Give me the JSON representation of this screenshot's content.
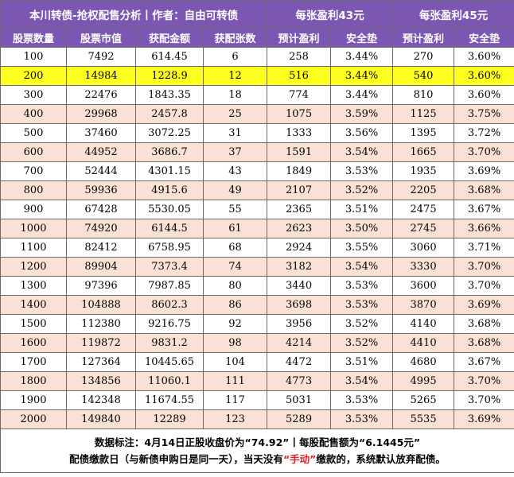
{
  "title": {
    "left": "本川转债-抢权配售分析丨作者：自由可转债",
    "mid": "每张盈利43元",
    "right": "每张盈利45元"
  },
  "headers": [
    "股票数量",
    "股票市值",
    "获配金额",
    "获配张数",
    "预计盈利",
    "安全垫",
    "预计盈利",
    "安全垫"
  ],
  "rows": [
    [
      "100",
      "7492",
      "614.45",
      "6",
      "258",
      "3.44%",
      "270",
      "3.60%"
    ],
    [
      "200",
      "14984",
      "1228.9",
      "12",
      "516",
      "3.44%",
      "540",
      "3.60%"
    ],
    [
      "300",
      "22476",
      "1843.35",
      "18",
      "774",
      "3.44%",
      "810",
      "3.60%"
    ],
    [
      "400",
      "29968",
      "2457.8",
      "25",
      "1075",
      "3.59%",
      "1125",
      "3.75%"
    ],
    [
      "500",
      "37460",
      "3072.25",
      "31",
      "1333",
      "3.56%",
      "1395",
      "3.72%"
    ],
    [
      "600",
      "44952",
      "3686.7",
      "37",
      "1591",
      "3.54%",
      "1665",
      "3.70%"
    ],
    [
      "700",
      "52444",
      "4301.15",
      "43",
      "1849",
      "3.53%",
      "1935",
      "3.69%"
    ],
    [
      "800",
      "59936",
      "4915.6",
      "49",
      "2107",
      "3.52%",
      "2205",
      "3.68%"
    ],
    [
      "900",
      "67428",
      "5530.05",
      "55",
      "2365",
      "3.51%",
      "2475",
      "3.67%"
    ],
    [
      "1000",
      "74920",
      "6144.5",
      "61",
      "2623",
      "3.50%",
      "2745",
      "3.66%"
    ],
    [
      "1100",
      "82412",
      "6758.95",
      "68",
      "2924",
      "3.55%",
      "3060",
      "3.71%"
    ],
    [
      "1200",
      "89904",
      "7373.4",
      "74",
      "3182",
      "3.54%",
      "3330",
      "3.70%"
    ],
    [
      "1300",
      "97396",
      "7987.85",
      "80",
      "3440",
      "3.53%",
      "3600",
      "3.70%"
    ],
    [
      "1400",
      "104888",
      "8602.3",
      "86",
      "3698",
      "3.53%",
      "3870",
      "3.69%"
    ],
    [
      "1500",
      "112380",
      "9216.75",
      "92",
      "3956",
      "3.52%",
      "4140",
      "3.68%"
    ],
    [
      "1600",
      "119872",
      "9831.2",
      "98",
      "4214",
      "3.52%",
      "4410",
      "3.68%"
    ],
    [
      "1700",
      "127364",
      "10445.65",
      "104",
      "4472",
      "3.51%",
      "4680",
      "3.67%"
    ],
    [
      "1800",
      "134856",
      "11060.1",
      "111",
      "4773",
      "3.54%",
      "4995",
      "3.70%"
    ],
    [
      "1900",
      "142348",
      "11674.55",
      "117",
      "5031",
      "3.53%",
      "5265",
      "3.70%"
    ],
    [
      "2000",
      "149840",
      "12289",
      "123",
      "5289",
      "3.53%",
      "5535",
      "3.69%"
    ]
  ],
  "footer": {
    "line1": "数据标注：4月14日正股收盘价为“74.92”丨每股配售额为“6.1445元”",
    "line2_pre": "配债缴款日（与新债申购日是同一天），当天没有",
    "line2_red": "“手动”",
    "line2_post": "缴款的，系统默认放弃配债。"
  },
  "colors": {
    "header_bg": "#7b56b3",
    "header_text": "#ffffff",
    "row_white": "#ffffff",
    "row_peach": "#f9e2d5",
    "row_highlight": "#ffff1f",
    "accent_red": "#e02020"
  }
}
